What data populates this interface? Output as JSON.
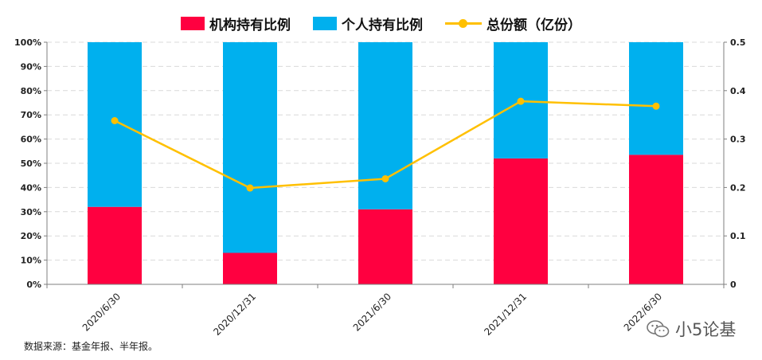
{
  "legend": {
    "institution": "机构持有比例",
    "individual": "个人持有比例",
    "total": "总份额（亿份）"
  },
  "source_note": "数据来源：基金年报、半年报。",
  "watermark": {
    "text": "小5论基",
    "icon": "wechat-logo-icon"
  },
  "colors": {
    "institution": "#FF0040",
    "individual": "#00B0EE",
    "total": "#FFC000",
    "grid": "#D9D9D9",
    "axis": "#7F7F7F"
  },
  "chart_data": {
    "type": "bar",
    "stacked": true,
    "categories": [
      "2020/6/30",
      "2020/12/31",
      "2021/6/30",
      "2021/12/31",
      "2022/6/30"
    ],
    "series": [
      {
        "name": "机构持有比例",
        "type": "bar",
        "axis": "left",
        "values": [
          0.32,
          0.13,
          0.31,
          0.52,
          0.535
        ]
      },
      {
        "name": "个人持有比例",
        "type": "bar",
        "axis": "left",
        "values": [
          0.68,
          0.87,
          0.69,
          0.48,
          0.465
        ]
      },
      {
        "name": "总份额（亿份）",
        "type": "line",
        "axis": "right",
        "values": [
          0.338,
          0.199,
          0.218,
          0.378,
          0.368
        ]
      }
    ],
    "y_left": {
      "ylim": [
        0,
        1
      ],
      "ticks": [
        "0%",
        "10%",
        "20%",
        "30%",
        "40%",
        "50%",
        "60%",
        "70%",
        "80%",
        "90%",
        "100%"
      ]
    },
    "y_right": {
      "ylim": [
        0,
        0.5
      ],
      "ticks": [
        "0",
        "0.1",
        "0.2",
        "0.3",
        "0.4",
        "0.5"
      ]
    },
    "grid": true,
    "legend_position": "top-center",
    "xlabel": "",
    "ylabel": ""
  }
}
